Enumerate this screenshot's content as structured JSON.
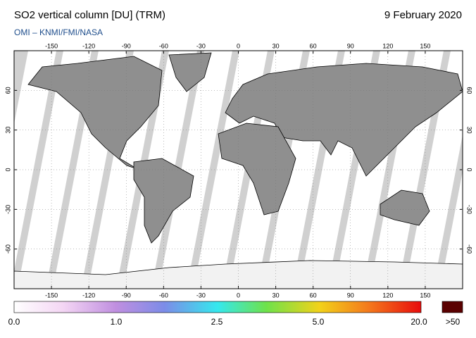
{
  "header": {
    "title": "SO2 vertical column [DU] (TRM)",
    "date": "9 February 2020",
    "subtitle": "OMI  –  KNMI/FMI/NASA"
  },
  "map": {
    "lon_ticks": [
      -150,
      -120,
      -90,
      -60,
      -30,
      0,
      30,
      60,
      90,
      120,
      150
    ],
    "lat_ticks": [
      60,
      30,
      0,
      -30,
      -60
    ]
  },
  "colorbar": {
    "labels": [
      "0.0",
      "1.0",
      "2.5",
      "5.0",
      "20.0",
      ">50"
    ]
  }
}
